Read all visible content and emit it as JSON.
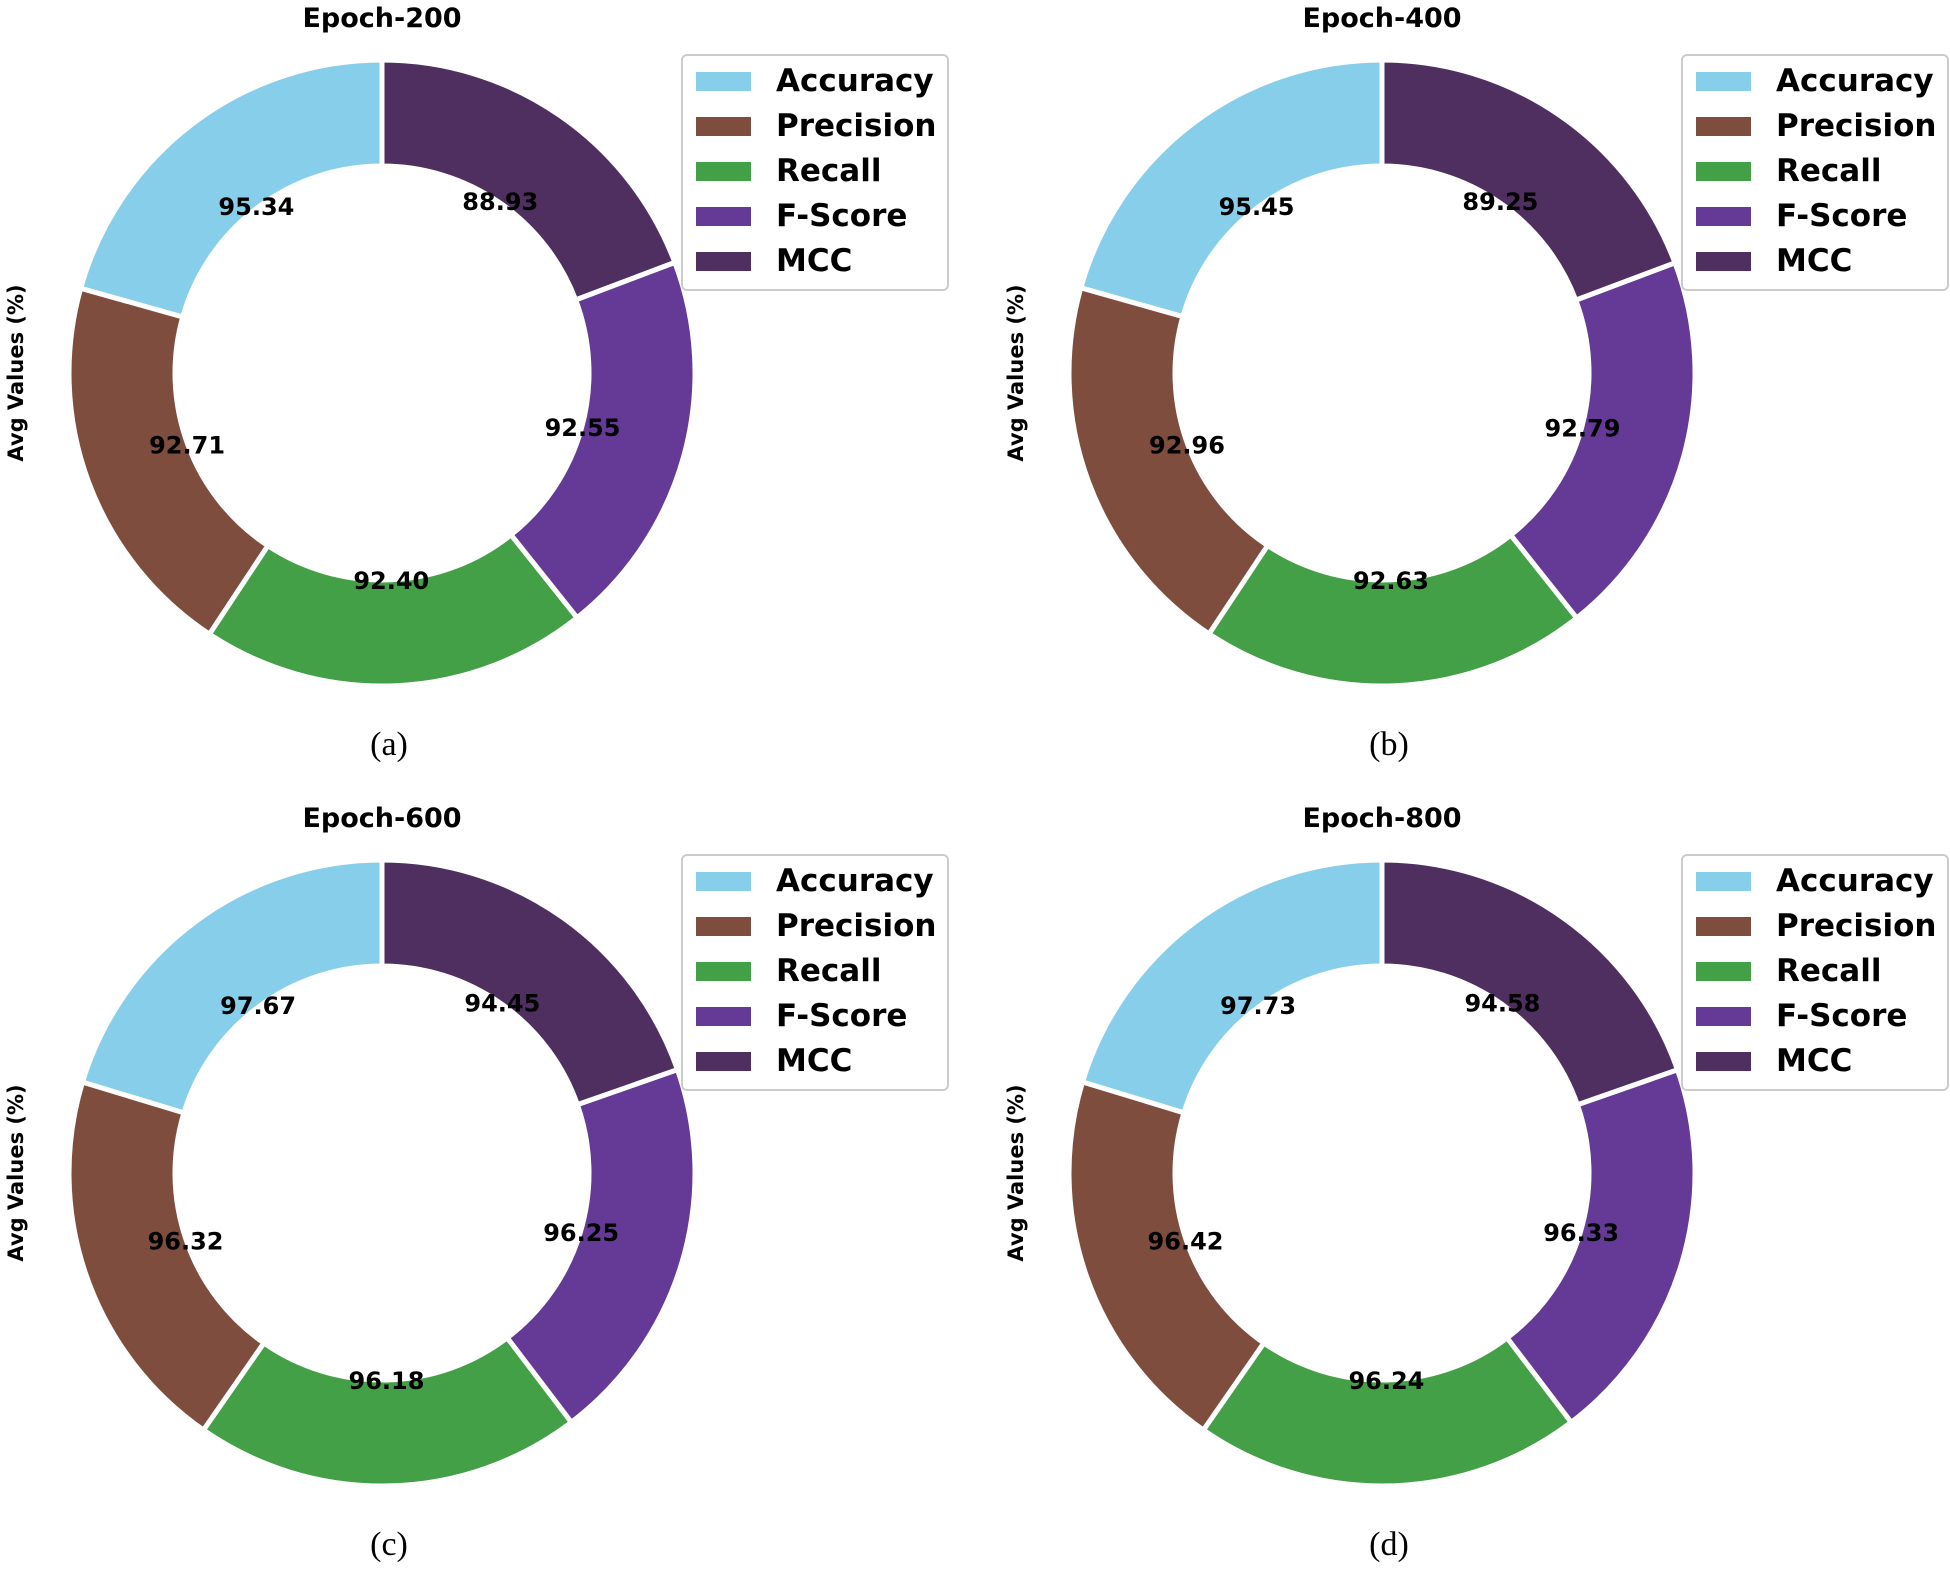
{
  "legend": [
    "Accuracy",
    "Precision",
    "Recall",
    "F-Score",
    "MCC"
  ],
  "colors": [
    "#87CEEB",
    "#7F4D3E",
    "#43A047",
    "#653A96",
    "#4E2F60"
  ],
  "ylabel": "Avg Values (%)",
  "chart_data": [
    {
      "type": "pie",
      "style": "donut",
      "title": "Epoch-200",
      "caption": "(a)",
      "categories": [
        "Accuracy",
        "Precision",
        "Recall",
        "F-Score",
        "MCC"
      ],
      "values": [
        95.34,
        92.71,
        92.4,
        92.55,
        88.93
      ],
      "labels": [
        "95.34",
        "92.71",
        "92.40",
        "92.55",
        "88.93"
      ],
      "ylabel": "Avg Values (%)",
      "legend_position": "top-right"
    },
    {
      "type": "pie",
      "style": "donut",
      "title": "Epoch-400",
      "caption": "(b)",
      "categories": [
        "Accuracy",
        "Precision",
        "Recall",
        "F-Score",
        "MCC"
      ],
      "values": [
        95.45,
        92.96,
        92.63,
        92.79,
        89.25
      ],
      "labels": [
        "95.45",
        "92.96",
        "92.63",
        "92.79",
        "89.25"
      ],
      "ylabel": "Avg Values (%)",
      "legend_position": "top-right"
    },
    {
      "type": "pie",
      "style": "donut",
      "title": "Epoch-600",
      "caption": "(c)",
      "categories": [
        "Accuracy",
        "Precision",
        "Recall",
        "F-Score",
        "MCC"
      ],
      "values": [
        97.67,
        96.32,
        96.18,
        96.25,
        94.45
      ],
      "labels": [
        "97.67",
        "96.32",
        "96.18",
        "96.25",
        "94.45"
      ],
      "ylabel": "Avg Values (%)",
      "legend_position": "top-right"
    },
    {
      "type": "pie",
      "style": "donut",
      "title": "Epoch-800",
      "caption": "(d)",
      "categories": [
        "Accuracy",
        "Precision",
        "Recall",
        "F-Score",
        "MCC"
      ],
      "values": [
        97.73,
        96.42,
        96.24,
        96.33,
        94.58
      ],
      "labels": [
        "97.73",
        "96.42",
        "96.24",
        "96.33",
        "94.58"
      ],
      "ylabel": "Avg Values (%)",
      "legend_position": "top-right"
    }
  ]
}
